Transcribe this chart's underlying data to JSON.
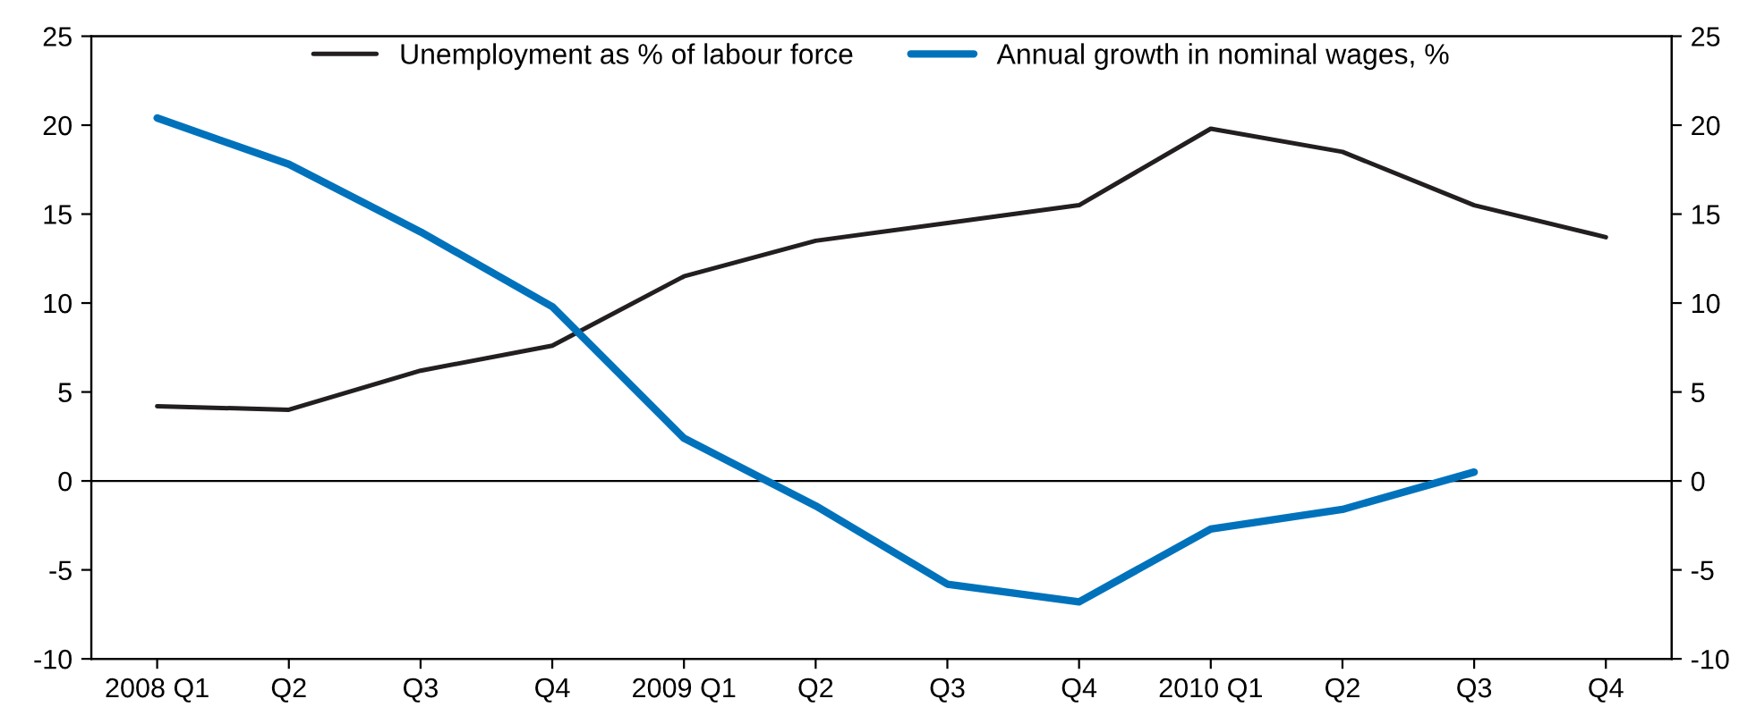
{
  "chart_data": {
    "type": "line",
    "categories": [
      "2008 Q1",
      "Q2",
      "Q3",
      "Q4",
      "2009 Q1",
      "Q2",
      "Q3",
      "Q4",
      "2010 Q1",
      "Q2",
      "Q3",
      "Q4"
    ],
    "series": [
      {
        "name": "Unemployment as % of labour force",
        "color": "#231f20",
        "values": [
          4.2,
          4.0,
          6.2,
          7.6,
          11.5,
          13.5,
          14.5,
          15.5,
          19.8,
          18.5,
          15.5,
          13.7
        ]
      },
      {
        "name": "Annual growth in nominal wages, %",
        "color": "#0072bc",
        "values": [
          20.4,
          17.8,
          14.0,
          9.8,
          2.4,
          -1.4,
          -5.8,
          -6.8,
          -2.7,
          -1.6,
          0.5,
          null
        ]
      }
    ],
    "ylim": [
      -10,
      25
    ],
    "yticks": [
      -10,
      -5,
      0,
      5,
      10,
      15,
      20,
      25
    ],
    "y2lim": [
      -10,
      25
    ],
    "y2ticks": [
      -10,
      -5,
      0,
      5,
      10,
      15,
      20,
      25
    ],
    "ref_lines": [
      {
        "axis": "y",
        "value": 0,
        "color": "#000000"
      }
    ],
    "legend": "top",
    "grid": false,
    "line_style": "solid",
    "marker": "none"
  }
}
